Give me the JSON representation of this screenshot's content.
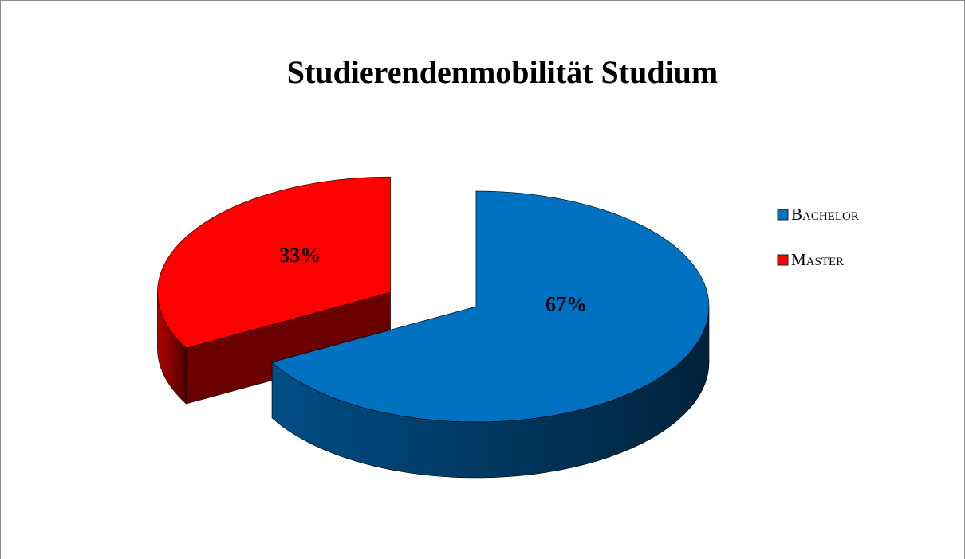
{
  "chart_data": {
    "type": "pie",
    "title": "Studierendenmobilität Studium",
    "categories": [
      "Bachelor",
      "Master"
    ],
    "values": [
      67,
      33
    ],
    "value_labels": [
      "67%",
      "33%"
    ],
    "colors": [
      "#0070c0",
      "#ff0000"
    ],
    "legend": "right"
  }
}
